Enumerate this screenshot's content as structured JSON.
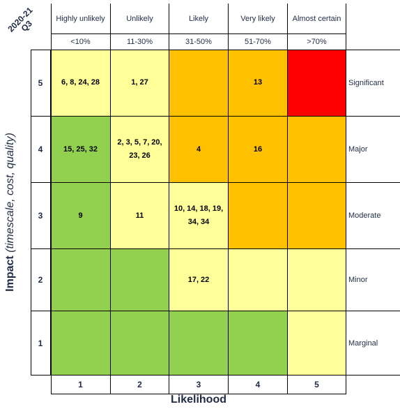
{
  "period_label": "2020-21 Q3",
  "y_axis_title": "Impact",
  "y_axis_subtitle": "(timescale, cost, quality)",
  "x_axis_title": "Likelihood",
  "columns": [
    {
      "label": "Highly unlikely",
      "range": "<10%",
      "number": "1"
    },
    {
      "label": "Unlikely",
      "range": "11-30%",
      "number": "2"
    },
    {
      "label": "Likely",
      "range": "31-50%",
      "number": "3"
    },
    {
      "label": "Very likely",
      "range": "51-70%",
      "number": "4"
    },
    {
      "label": "Almost certain",
      "range": ">70%",
      "number": "5"
    }
  ],
  "rows": [
    {
      "number": "5",
      "severity": "Significant",
      "cells": [
        {
          "text": "6, 8, 24, 28",
          "color": "#ffff99"
        },
        {
          "text": "1, 27",
          "color": "#ffff99"
        },
        {
          "text": "",
          "color": "#ffc000"
        },
        {
          "text": "13",
          "color": "#ffc000"
        },
        {
          "text": "",
          "color": "#ff0000"
        }
      ]
    },
    {
      "number": "4",
      "severity": "Major",
      "cells": [
        {
          "text": "15, 25, 32",
          "color": "#92d050"
        },
        {
          "text": "2, 3, 5, 7, 20, 23, 26",
          "color": "#ffff99"
        },
        {
          "text": "4",
          "color": "#ffc000"
        },
        {
          "text": "16",
          "color": "#ffc000"
        },
        {
          "text": "",
          "color": "#ffc000"
        }
      ]
    },
    {
      "number": "3",
      "severity": "Moderate",
      "cells": [
        {
          "text": "9",
          "color": "#92d050"
        },
        {
          "text": "11",
          "color": "#ffff99"
        },
        {
          "text": "10, 14, 18, 19, 34, 34",
          "color": "#ffff99"
        },
        {
          "text": "",
          "color": "#ffc000"
        },
        {
          "text": "",
          "color": "#ffc000"
        }
      ]
    },
    {
      "number": "2",
      "severity": "Minor",
      "cells": [
        {
          "text": "",
          "color": "#92d050"
        },
        {
          "text": "",
          "color": "#92d050"
        },
        {
          "text": "17, 22",
          "color": "#ffff99"
        },
        {
          "text": "",
          "color": "#ffff99"
        },
        {
          "text": "",
          "color": "#ffff99"
        }
      ]
    },
    {
      "number": "1",
      "severity": "Marginal",
      "cells": [
        {
          "text": "",
          "color": "#92d050"
        },
        {
          "text": "",
          "color": "#92d050"
        },
        {
          "text": "",
          "color": "#92d050"
        },
        {
          "text": "",
          "color": "#92d050"
        },
        {
          "text": "",
          "color": "#ffff99"
        }
      ]
    }
  ]
}
